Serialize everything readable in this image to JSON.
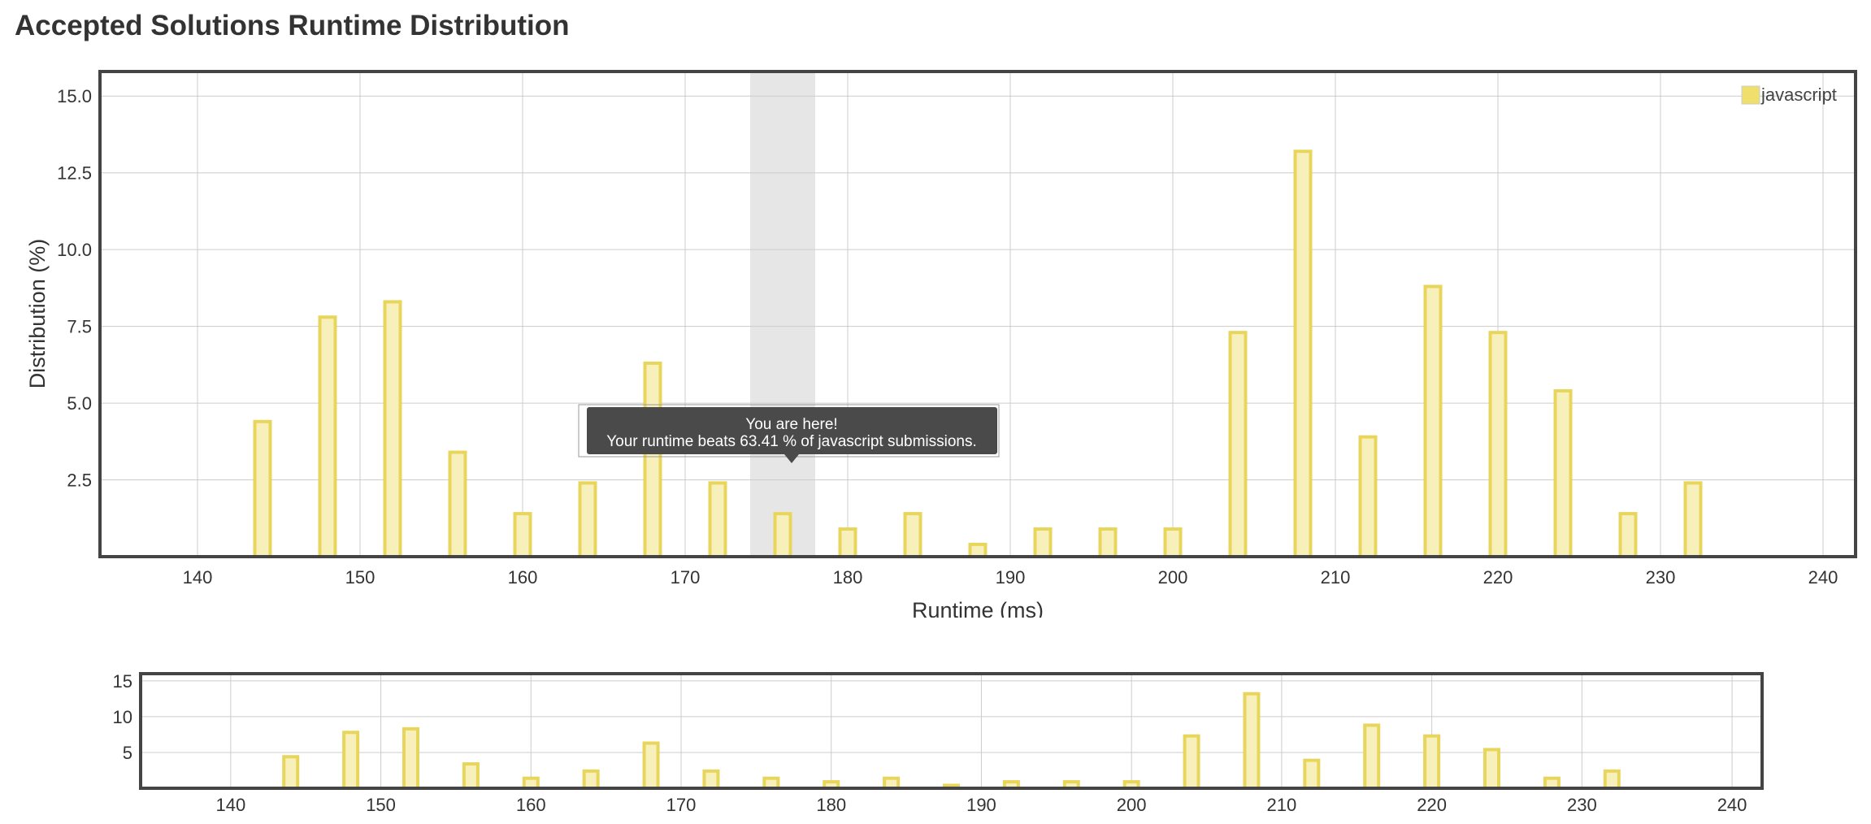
{
  "page": {
    "title": "Accepted Solutions Runtime Distribution"
  },
  "colors": {
    "bar_fill": "#f7f0bb",
    "bar_stroke": "#e8d65c",
    "grid": "#cccccc",
    "frame": "#444444",
    "highlight_band": "#e6e6e6",
    "tooltip_bg": "#4a4a4a",
    "tooltip_text": "#ffffff"
  },
  "tooltip": {
    "line1": "You are here!",
    "line2": "Your runtime beats 63.41 % of javascript submissions."
  },
  "chart_data": [
    {
      "type": "bar",
      "role": "main",
      "xlabel": "Runtime (ms)",
      "ylabel": "Distribution (%)",
      "xlim": [
        134,
        242
      ],
      "ylim": [
        0,
        15.8
      ],
      "xticks": [
        140,
        150,
        160,
        170,
        180,
        190,
        200,
        210,
        220,
        230,
        240
      ],
      "yticks": [
        2.5,
        5.0,
        7.5,
        10.0,
        12.5,
        15.0
      ],
      "ytick_labels": [
        "2.5",
        "5.0",
        "7.5",
        "10.0",
        "12.5",
        "15.0"
      ],
      "grid": true,
      "legend_position": "top-right",
      "highlight_range": [
        174,
        178
      ],
      "series": [
        {
          "name": "javascript",
          "x": [
            144,
            148,
            152,
            156,
            160,
            164,
            168,
            172,
            176,
            180,
            184,
            188,
            192,
            196,
            200,
            204,
            208,
            212,
            216,
            220,
            224,
            228,
            232
          ],
          "values": [
            4.4,
            7.8,
            8.3,
            3.4,
            1.4,
            2.4,
            6.3,
            2.4,
            1.4,
            0.9,
            1.4,
            0.4,
            0.9,
            0.9,
            0.9,
            7.3,
            13.2,
            3.9,
            8.8,
            7.3,
            5.4,
            1.4,
            2.4
          ]
        }
      ]
    },
    {
      "type": "bar",
      "role": "overview",
      "xlim": [
        134,
        242
      ],
      "ylim": [
        0,
        16
      ],
      "xticks": [
        140,
        150,
        160,
        170,
        180,
        190,
        200,
        210,
        220,
        230,
        240
      ],
      "yticks": [
        5,
        10,
        15
      ],
      "ytick_labels": [
        "5",
        "10",
        "15"
      ],
      "grid": true,
      "series": [
        {
          "x": [
            144,
            148,
            152,
            156,
            160,
            164,
            168,
            172,
            176,
            180,
            184,
            188,
            192,
            196,
            200,
            204,
            208,
            212,
            216,
            220,
            224,
            228,
            232
          ],
          "values": [
            4.4,
            7.8,
            8.3,
            3.4,
            1.4,
            2.4,
            6.3,
            2.4,
            1.4,
            0.9,
            1.4,
            0.4,
            0.9,
            0.9,
            0.9,
            7.3,
            13.2,
            3.9,
            8.8,
            7.3,
            5.4,
            1.4,
            2.4
          ]
        }
      ]
    }
  ]
}
